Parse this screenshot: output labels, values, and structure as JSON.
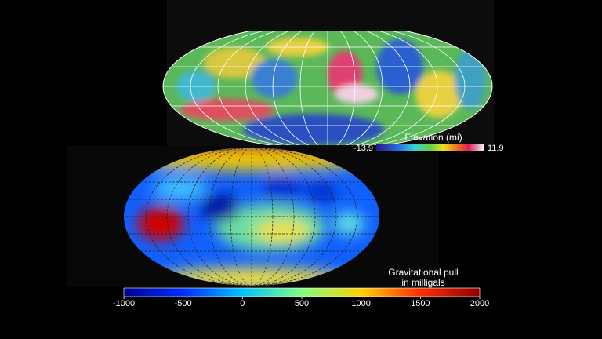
{
  "elevation": {
    "label": "Elevation (mi)",
    "min": -13.9,
    "max": 11.9
  },
  "gravity": {
    "label": [
      "Gravitational pull",
      "in milligals"
    ],
    "lim": [
      -1000,
      2000
    ],
    "ticks": [
      -1000,
      -500,
      0,
      500,
      1000,
      1500,
      2000
    ]
  }
}
